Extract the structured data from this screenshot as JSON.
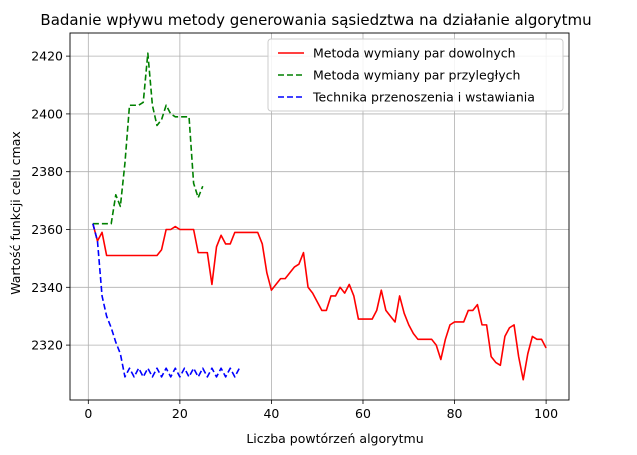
{
  "chart_data": {
    "type": "line",
    "title": "Badanie wpływu metody generowania sąsiedztwa na działanie algorytmu",
    "xlabel": "Liczba powtórzeń algorytmu",
    "ylabel": "Wartość funkcji celu cmax",
    "xlim": [
      -4,
      105
    ],
    "ylim": [
      2301,
      2428
    ],
    "xticks": [
      0,
      20,
      40,
      60,
      80,
      100
    ],
    "yticks": [
      2320,
      2340,
      2360,
      2380,
      2400,
      2420
    ],
    "grid": true,
    "legend_position": "top-right",
    "series": [
      {
        "name": "Metoda wymiany par dowolnych",
        "color": "#ff0000",
        "dash": "solid",
        "x": [
          1,
          2,
          3,
          4,
          5,
          6,
          7,
          8,
          9,
          10,
          11,
          12,
          13,
          14,
          15,
          16,
          17,
          18,
          19,
          20,
          21,
          22,
          23,
          24,
          25,
          26,
          27,
          28,
          29,
          30,
          31,
          32,
          33,
          34,
          35,
          36,
          37,
          38,
          39,
          40,
          41,
          42,
          43,
          44,
          45,
          46,
          47,
          48,
          49,
          50,
          51,
          52,
          53,
          54,
          55,
          56,
          57,
          58,
          59,
          60,
          61,
          62,
          63,
          64,
          65,
          66,
          67,
          68,
          69,
          70,
          71,
          72,
          73,
          74,
          75,
          76,
          77,
          78,
          79,
          80,
          81,
          82,
          83,
          84,
          85,
          86,
          87,
          88,
          89,
          90,
          91,
          92,
          93,
          94,
          95,
          96,
          97,
          98,
          99,
          100
        ],
        "y": [
          2362,
          2356,
          2359,
          2351,
          2351,
          2351,
          2351,
          2351,
          2351,
          2351,
          2351,
          2351,
          2351,
          2351,
          2351,
          2353,
          2360,
          2360,
          2361,
          2360,
          2360,
          2360,
          2360,
          2352,
          2352,
          2352,
          2341,
          2354,
          2358,
          2355,
          2355,
          2359,
          2359,
          2359,
          2359,
          2359,
          2359,
          2355,
          2345,
          2339,
          2341,
          2343,
          2343,
          2345,
          2347,
          2348,
          2352,
          2340,
          2338,
          2335,
          2332,
          2332,
          2337,
          2337,
          2340,
          2338,
          2341,
          2337,
          2329,
          2329,
          2329,
          2329,
          2332,
          2339,
          2332,
          2330,
          2328,
          2337,
          2331,
          2327,
          2324,
          2322,
          2322,
          2322,
          2322,
          2320,
          2315,
          2322,
          2327,
          2328,
          2328,
          2328,
          2332,
          2332,
          2334,
          2327,
          2327,
          2316,
          2314,
          2313,
          2323,
          2326,
          2327,
          2316,
          2308,
          2317,
          2323,
          2322,
          2322,
          2319
        ]
      },
      {
        "name": "Metoda wymiany par przyległych",
        "color": "#008000",
        "dash": "dashed",
        "x": [
          1,
          2,
          3,
          4,
          5,
          6,
          7,
          8,
          9,
          10,
          11,
          12,
          13,
          14,
          15,
          16,
          17,
          18,
          19,
          20,
          21,
          22,
          23,
          24,
          25
        ],
        "y": [
          2362,
          2362,
          2362,
          2362,
          2362,
          2372,
          2368,
          2383,
          2403,
          2403,
          2403,
          2404,
          2421,
          2403,
          2396,
          2398,
          2403,
          2400,
          2399,
          2399,
          2399,
          2399,
          2376,
          2371,
          2375
        ]
      },
      {
        "name": "Technika przenoszenia i wstawiania",
        "color": "#0000ff",
        "dash": "dashed",
        "x": [
          1,
          2,
          3,
          4,
          5,
          6,
          7,
          8,
          9,
          10,
          11,
          12,
          13,
          14,
          15,
          16,
          17,
          18,
          19,
          20,
          21,
          22,
          23,
          24,
          25,
          26,
          27,
          28,
          29,
          30,
          31,
          32,
          33
        ],
        "y": [
          2362,
          2356,
          2337,
          2330,
          2326,
          2321,
          2317,
          2309,
          2312,
          2309,
          2312,
          2309,
          2312,
          2309,
          2312,
          2309,
          2312,
          2309,
          2312,
          2309,
          2312,
          2309,
          2312,
          2309,
          2312,
          2309,
          2312,
          2309,
          2312,
          2309,
          2312,
          2309,
          2312
        ]
      }
    ]
  }
}
